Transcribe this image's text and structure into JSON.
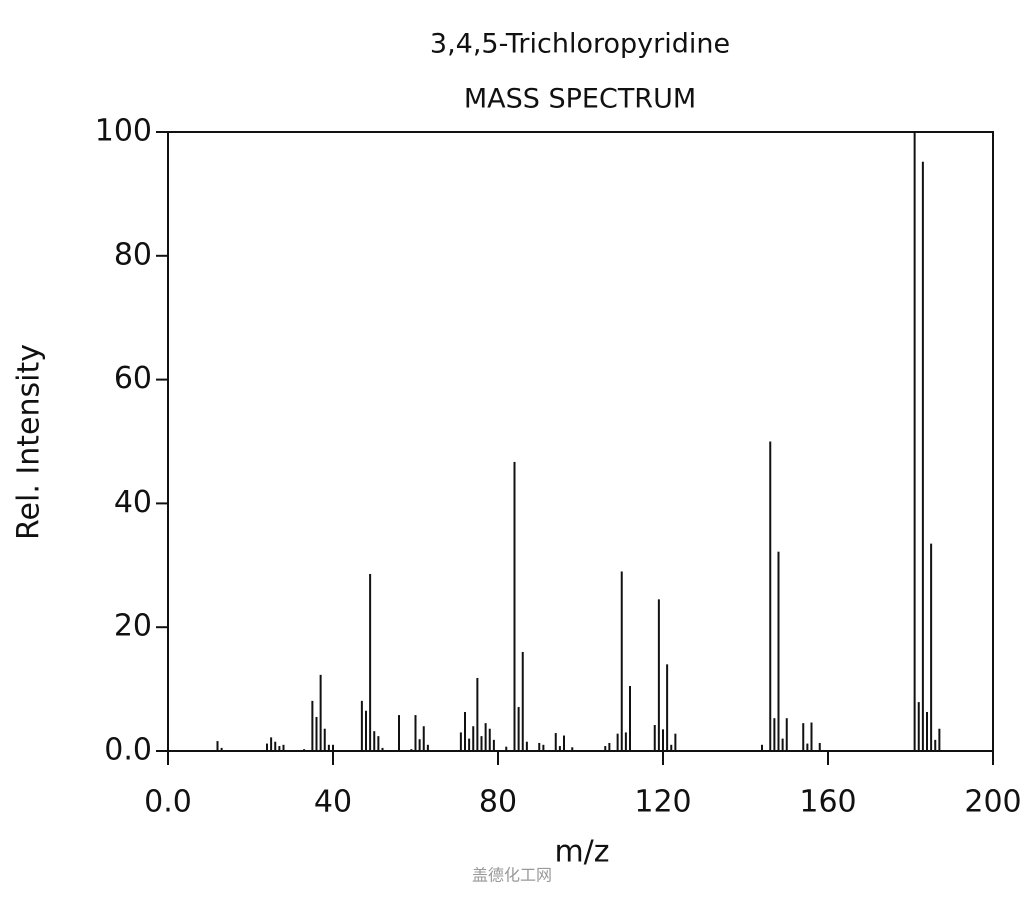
{
  "chart_data": {
    "type": "stem",
    "title": "3,4,5-Trichloropyridine",
    "subtitle": "MASS SPECTRUM",
    "x_label": "m/z",
    "y_label": "Rel. Intensity",
    "watermark": "盖德化工网",
    "color": "#111111",
    "x": [
      12,
      13,
      24,
      25,
      26,
      27,
      28,
      33,
      35,
      36,
      37,
      38,
      39,
      40,
      47,
      48,
      49,
      50,
      51,
      52,
      56,
      59,
      60,
      61,
      62,
      63,
      71,
      72,
      73,
      74,
      75,
      76,
      77,
      78,
      79,
      82,
      84,
      85,
      86,
      87,
      90,
      91,
      94,
      95,
      96,
      98,
      106,
      107,
      109,
      110,
      111,
      112,
      118,
      119,
      120,
      121,
      122,
      123,
      144,
      146,
      147,
      148,
      149,
      150,
      154,
      155,
      156,
      158,
      181,
      182,
      183,
      184,
      185,
      186,
      187
    ],
    "values": [
      1.6,
      0.5,
      1.2,
      2.2,
      1.5,
      0.8,
      1.0,
      0.3,
      8.1,
      5.5,
      12.3,
      3.6,
      1.0,
      1.0,
      8.1,
      6.5,
      28.6,
      3.2,
      2.4,
      0.5,
      5.8,
      0.3,
      5.8,
      1.9,
      4.0,
      1.0,
      3.0,
      6.3,
      2.0,
      4.0,
      11.8,
      2.4,
      4.5,
      3.6,
      1.8,
      0.7,
      46.7,
      7.1,
      16.0,
      1.5,
      1.3,
      1.0,
      2.9,
      0.8,
      2.5,
      0.6,
      0.8,
      1.3,
      2.8,
      29.0,
      3.0,
      10.5,
      4.2,
      24.5,
      3.5,
      14.0,
      1.0,
      2.8,
      1.0,
      50.0,
      5.3,
      32.2,
      2.0,
      5.3,
      4.5,
      1.2,
      4.6,
      1.3,
      100,
      7.9,
      95.2,
      6.3,
      33.5,
      1.8,
      3.6
    ],
    "xlim": [
      0,
      200
    ],
    "xticks": [
      {
        "value": 0,
        "label": "0.0"
      },
      40,
      80,
      120,
      160,
      200
    ],
    "ylim": [
      0,
      100
    ],
    "yticks": [
      {
        "value": 0,
        "label": "0.0"
      },
      20,
      40,
      60,
      80,
      100
    ]
  }
}
